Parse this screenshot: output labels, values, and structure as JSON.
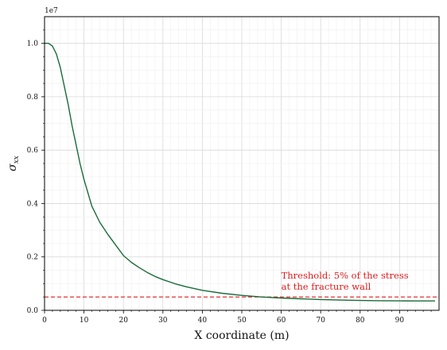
{
  "chart_data": {
    "type": "line",
    "title": "",
    "xlabel": "X coordinate (m)",
    "ylabel": "σ_xx",
    "ylabel_base": "σ",
    "ylabel_sub": "xx",
    "offset_text": "1e7",
    "xlim": [
      0,
      100
    ],
    "ylim": [
      0,
      11000000
    ],
    "xticks": [
      0,
      10,
      20,
      30,
      40,
      50,
      60,
      70,
      80,
      90
    ],
    "xtick_labels": [
      "0",
      "10",
      "20",
      "30",
      "40",
      "50",
      "60",
      "70",
      "80",
      "90"
    ],
    "yticks": [
      0,
      2000000,
      4000000,
      6000000,
      8000000,
      10000000
    ],
    "ytick_labels": [
      "0.0",
      "0.2",
      "0.4",
      "0.6",
      "0.8",
      "1.0"
    ],
    "grid": true,
    "series": [
      {
        "color": "#1a6b3a",
        "x": [
          0,
          1,
          2,
          3,
          4,
          5,
          6,
          7,
          8,
          9,
          10,
          12,
          14,
          16,
          18,
          20,
          22,
          24,
          26,
          28,
          30,
          33,
          36,
          40,
          45,
          50,
          55,
          60,
          65,
          70,
          75,
          80,
          85,
          90,
          95,
          99
        ],
        "y": [
          10000000,
          10000000,
          9900000,
          9600000,
          9100000,
          8400000,
          7700000,
          6900000,
          6200000,
          5500000,
          4900000,
          3900000,
          3300000,
          2850000,
          2450000,
          2050000,
          1800000,
          1600000,
          1420000,
          1270000,
          1150000,
          1000000,
          880000,
          750000,
          640000,
          560000,
          500000,
          460000,
          430000,
          405000,
          385000,
          370000,
          360000,
          355000,
          350000,
          350000
        ]
      }
    ],
    "threshold": {
      "value": 500000,
      "color": "#dd1c1c",
      "label_lines": [
        "Threshold: 5% of the stress",
        "at the fracture wall"
      ],
      "label_x": 60,
      "label_y": 780000
    }
  }
}
